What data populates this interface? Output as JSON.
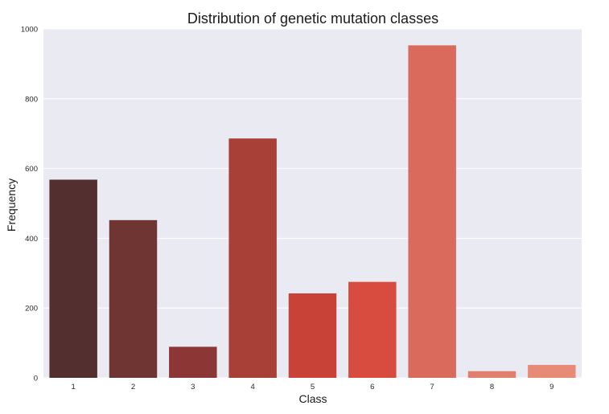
{
  "chart_data": {
    "type": "bar",
    "title": "Distribution of genetic mutation classes",
    "xlabel": "Class",
    "ylabel": "Frequency",
    "categories": [
      "1",
      "2",
      "3",
      "4",
      "5",
      "6",
      "7",
      "8",
      "9"
    ],
    "values": [
      568,
      452,
      89,
      686,
      242,
      275,
      953,
      19,
      37
    ],
    "ylim": [
      0,
      1000
    ],
    "yticks": [
      "0",
      "200",
      "400",
      "600",
      "800",
      "1000"
    ],
    "grid": "horizontal",
    "colors": {
      "background": "#eaeaf2",
      "grid": "#ffffff",
      "bars": [
        "#53302f",
        "#6f3533",
        "#8c3735",
        "#a84038",
        "#c94238",
        "#d74c3e",
        "#d96a5c",
        "#e07f6e",
        "#e88b76"
      ]
    }
  }
}
